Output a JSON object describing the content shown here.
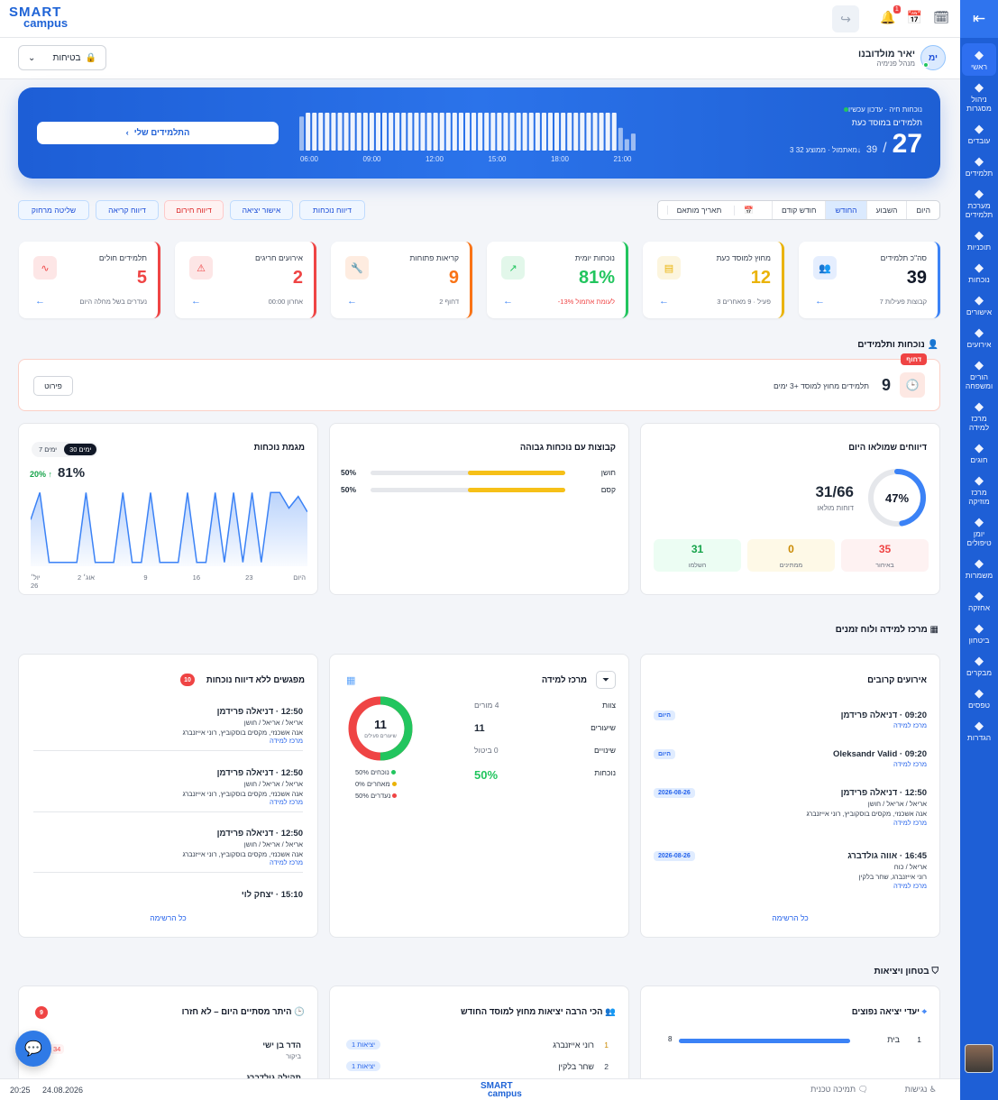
{
  "brand": {
    "logo_top": "SMART",
    "logo_bottom": "campus",
    "color": "#1e5fd6"
  },
  "topbar": {
    "notif_count": "1",
    "icons": [
      "share-icon",
      "bell-icon",
      "calendar-icon",
      "calendar-clock-icon",
      "collapse-icon"
    ]
  },
  "sidebar": {
    "items": [
      {
        "label": "ראשי",
        "icon": "home-icon"
      },
      {
        "label": "ניהול מסגרות",
        "icon": "building-icon"
      },
      {
        "label": "עובדים",
        "icon": "user-icon"
      },
      {
        "label": "תלמידים",
        "icon": "users-icon"
      },
      {
        "label": "מערכת תלמידים",
        "icon": "grid-icon"
      },
      {
        "label": "תוכניות",
        "icon": "book-icon"
      },
      {
        "label": "נוכחות",
        "icon": "user-check-icon"
      },
      {
        "label": "אישורים",
        "icon": "walk-icon"
      },
      {
        "label": "אירועים",
        "icon": "warning-icon"
      },
      {
        "label": "הורים ומשפחה",
        "icon": "family-icon"
      },
      {
        "label": "מרכז למידה",
        "icon": "cap-icon"
      },
      {
        "label": "חוגים",
        "icon": "ball-icon"
      },
      {
        "label": "מרכז מוזיקה",
        "icon": "music-icon"
      },
      {
        "label": "יומן טיפולים",
        "icon": "journal-icon"
      },
      {
        "label": "משמרות",
        "icon": "cap2-icon"
      },
      {
        "label": "אחזקה",
        "icon": "wrench-icon"
      },
      {
        "label": "ביטחון",
        "icon": "shield-icon"
      },
      {
        "label": "מבקרים",
        "icon": "visitor-icon"
      },
      {
        "label": "טפסים",
        "icon": "form-icon"
      },
      {
        "label": "הגדרות",
        "icon": "gear-icon"
      }
    ]
  },
  "user": {
    "name": "יאיר מולדובנו",
    "role": "מנהל פנימיה",
    "initials": "ימ",
    "security_select": "בטיחות"
  },
  "hero": {
    "live": "נוכחות חיה · עדכון עכשיו",
    "subtitle": "תלמידים במוסד כעת",
    "count": "27",
    "total": "39",
    "delta": "3",
    "delta_txt": "מאתמול · ממוצע 32",
    "button": "התלמידים שלי",
    "ticks": [
      "06:00",
      "09:00",
      "12:00",
      "15:00",
      "18:00",
      "21:00"
    ],
    "bars": [
      0.9,
      1,
      1,
      1,
      1,
      1,
      1,
      1,
      1,
      1,
      1,
      1,
      1,
      1,
      1,
      1,
      1,
      1,
      1,
      1,
      1,
      1,
      1,
      1,
      1,
      1,
      1,
      1,
      1,
      1,
      1,
      1,
      1,
      1,
      1,
      1,
      1,
      1,
      1,
      1,
      1,
      1,
      1,
      1,
      1,
      1,
      1,
      1,
      1,
      1,
      0.6,
      0.3,
      0.45
    ]
  },
  "quick": [
    "דיווח נוכחות",
    "אישור יציאה",
    "דיווח חירום",
    "דיווח קריאה",
    "שליטה מרחוק"
  ],
  "periods": [
    "היום",
    "השבוע",
    "החודש",
    "חודש קודם",
    "תאריך מותאם"
  ],
  "kpis": [
    {
      "title": "סה\"כ תלמידים",
      "value": "39",
      "sub": "7 קבוצות פעילות",
      "color": "#3b82f6",
      "icon": "users-icon",
      "ic": "👥"
    },
    {
      "title": "מחוץ למוסד כעת",
      "value": "12",
      "sub": "3 פעיל · 9 מאחרים",
      "color": "#eab308",
      "icon": "file-icon",
      "ic": "▤"
    },
    {
      "title": "נוכחות יומית",
      "value": "81%",
      "sub": "-13% לעומת אתמול",
      "color": "#22c55e",
      "icon": "trend-icon",
      "ic": "↗"
    },
    {
      "title": "קריאות פתוחות",
      "value": "9",
      "sub": "2 דחוף",
      "color": "#f97316",
      "icon": "wrench-icon",
      "ic": "🔧"
    },
    {
      "title": "אירועים חריגים",
      "value": "2",
      "sub": "00:00 אחרון",
      "color": "#ef4444",
      "icon": "warning-icon",
      "ic": "⚠"
    },
    {
      "title": "תלמידים חולים",
      "value": "5",
      "sub": "נעדרים בשל מחלה היום",
      "color": "#ef4444",
      "icon": "pulse-icon",
      "ic": "∿"
    }
  ],
  "section_attendance": "נוכחות ותלמידים",
  "alert": {
    "tag": "דחוף",
    "count": "9",
    "text": "תלמידים מחוץ למוסד +3 ימים",
    "button": "פירוט"
  },
  "reports": {
    "title": "דיווחים שמולאו היום",
    "percent": "47%",
    "ratio": "31/66",
    "ratio_label": "דוחות מולאו",
    "late": "35",
    "late_lbl": "באיחור",
    "pending": "0",
    "pending_lbl": "ממתינים",
    "done": "31",
    "done_lbl": "השלמו",
    "fraction": 0.47
  },
  "groups": {
    "title": "קבוצות עם נוכחות גבוהה",
    "rows": [
      {
        "name": "חושן",
        "pct": "50%",
        "value": 0.5
      },
      {
        "name": "קסם",
        "pct": "50%",
        "value": 0.5
      }
    ]
  },
  "trend": {
    "title": "מגמת נוכחות",
    "value": "81%",
    "change": "20%",
    "tab_on": "30 ימים",
    "tab_off": "7 ימים",
    "xlabels": [
      "היום",
      "23",
      "16",
      "9",
      "אוג׳ 2",
      "יול׳ 26"
    ]
  },
  "chart_data": {
    "type": "area",
    "values": [
      60,
      95,
      5,
      5,
      5,
      5,
      95,
      5,
      5,
      5,
      95,
      5,
      5,
      95,
      5,
      5,
      5,
      95,
      5,
      5,
      95,
      5,
      95,
      5,
      95,
      5,
      95,
      95,
      75,
      90,
      70
    ]
  },
  "section_learning": "מרכז למידה ולוח זמנים",
  "events": {
    "title": "אירועים קרובים",
    "link": "כל הרשימה",
    "items": [
      {
        "title": "09:20 · דניאלה פרידמן",
        "sub": "",
        "loc": "מרכז למידה",
        "date": "היום"
      },
      {
        "title": "Oleksandr Valid · 09:20",
        "sub": "",
        "loc": "מרכז למידה",
        "date": "היום"
      },
      {
        "title": "12:50 · דניאלה פרידמן",
        "sub": "אריאל / אריאל / חושן",
        "sub2": "אנה אשכנזי, מקסים בוסקוביץ, רוני אייזנברג",
        "loc": "מרכז למידה",
        "date": "2026-08-26"
      },
      {
        "title": "16:45 · אווה גולדברג",
        "sub": "אריאל / כוח",
        "sub2": "רוני אייזנברג, שחר בלקין",
        "loc": "מרכז למידה",
        "date": "2026-08-26"
      }
    ]
  },
  "learning": {
    "title": "מרכז למידה",
    "rows": [
      {
        "k": "צוות",
        "v": "4 מורים"
      },
      {
        "k": "שיעורים",
        "v": "11"
      },
      {
        "k": "שינויים",
        "v": "0 ביטול"
      },
      {
        "k": "נוכחות",
        "v": "50%"
      }
    ],
    "donut_num": "11",
    "donut_lbl": "שיעורים פעילים",
    "legend": [
      "50% נוכחים",
      "0% מאחרים",
      "50% נעדרים"
    ]
  },
  "sessions": {
    "title": "מפגשים ללא דיווח נוכחות",
    "badge": "10",
    "link": "כל הרשימה",
    "items": [
      {
        "title": "12:50 · דניאלה פרידמן",
        "s1": "אריאל / אריאל / חושן",
        "s2": "אנה אשכנזי, מקסים בוסקוביץ, רוני אייזנברג",
        "loc": "מרכז למידה"
      },
      {
        "title": "12:50 · דניאלה פרידמן",
        "s1": "אריאל / אריאל / חושן",
        "s2": "אנה אשכנזי, מקסים בוסקוביץ, רוני אייזנברג",
        "loc": "מרכז למידה"
      },
      {
        "title": "12:50 · דניאלה פרידמן",
        "s1": "אריאל / אריאל / חושן",
        "s2": "אנה אשכנזי, מקסים בוסקוביץ, רוני אייזנברג",
        "loc": "מרכז למידה"
      },
      {
        "title": "15:10 · יצחק לוי",
        "s1": "",
        "s2": "",
        "loc": ""
      }
    ]
  },
  "section_safety": "בטחון ויציאות",
  "destinations": {
    "title": "יעדי יציאה נפוצים",
    "row": {
      "rank": "1",
      "name": "בית",
      "count": "8"
    }
  },
  "frequent": {
    "title": "הכי הרבה יציאות מחוץ למוסד החודש",
    "rows": [
      {
        "rank": "1",
        "name": "רוני אייזנברג",
        "tag": "1 יציאות"
      },
      {
        "rank": "2",
        "name": "שחר בלקין",
        "tag": "1 יציאות"
      }
    ]
  },
  "overdue": {
    "title": "היתר מסתיים היום – לא חזרו",
    "badge": "9",
    "row": {
      "name": "הדר בן ישי",
      "sub": "ביקור",
      "tag": "34"
    },
    "row2": "תהילה גולדברג"
  },
  "status": {
    "time": "20:25",
    "date": "24.08.2026",
    "support": "תמיכה טכנית",
    "access": "נגישות"
  }
}
